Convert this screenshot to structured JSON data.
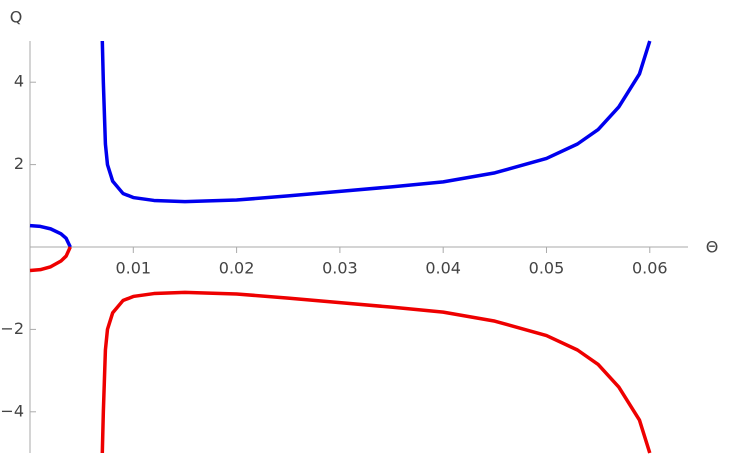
{
  "chart_data": {
    "type": "line",
    "x_label": "Θ",
    "y_label": "Q",
    "xlim": [
      0,
      0.0637
    ],
    "ylim": [
      -5,
      5
    ],
    "xticks": [
      0.01,
      0.02,
      0.03,
      0.04,
      0.05,
      0.06
    ],
    "yticks": [
      {
        "value": -4,
        "label": "−4"
      },
      {
        "value": -2,
        "label": "−2"
      },
      2,
      4
    ],
    "series": [
      {
        "color": "#0000ee",
        "x": [
          0,
          0.001,
          0.002,
          0.003,
          0.0035,
          0.0039,
          0.005,
          0.007,
          0.0071,
          0.0073,
          0.0075,
          0.008,
          0.009,
          0.01,
          0.012,
          0.015,
          0.02,
          0.025,
          0.03,
          0.035,
          0.04,
          0.045,
          0.05,
          0.053,
          0.055,
          0.057,
          0.059,
          0.06
        ],
        "values": [
          0.52,
          0.5,
          0.44,
          0.32,
          0.21,
          0,
          null,
          5,
          4,
          2.5,
          2.0,
          1.6,
          1.3,
          1.2,
          1.13,
          1.1,
          1.14,
          1.24,
          1.35,
          1.46,
          1.58,
          1.8,
          2.15,
          2.5,
          2.85,
          3.4,
          4.2,
          5
        ]
      },
      {
        "color": "#ee0000",
        "x": [
          0,
          0.001,
          0.002,
          0.003,
          0.0035,
          0.0039,
          0.005,
          0.007,
          0.0071,
          0.0073,
          0.0075,
          0.008,
          0.009,
          0.01,
          0.012,
          0.015,
          0.02,
          0.025,
          0.03,
          0.035,
          0.04,
          0.045,
          0.05,
          0.053,
          0.055,
          0.057,
          0.059,
          0.06
        ],
        "values": [
          -0.57,
          -0.55,
          -0.48,
          -0.34,
          -0.22,
          0,
          null,
          -5,
          -4,
          -2.5,
          -2.0,
          -1.6,
          -1.3,
          -1.2,
          -1.13,
          -1.1,
          -1.14,
          -1.24,
          -1.35,
          -1.46,
          -1.58,
          -1.8,
          -2.15,
          -2.5,
          -2.85,
          -3.4,
          -4.2,
          -5
        ]
      }
    ]
  }
}
